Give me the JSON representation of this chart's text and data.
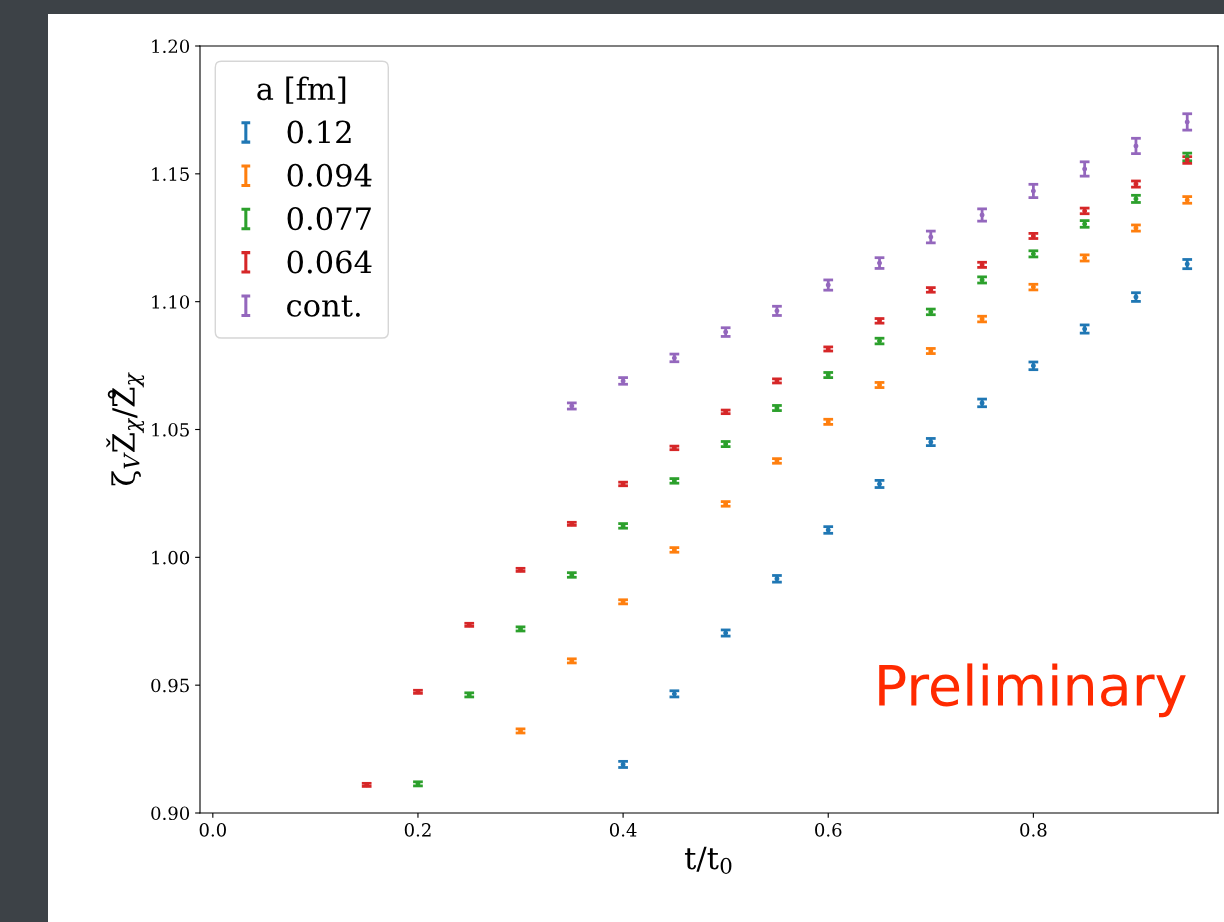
{
  "chart_data": {
    "type": "scatter",
    "xlabel": "t/t$_{0}$",
    "ylabel": "ζ$_{V}$Ž$_{χ}$/Z̊$_{χ}$",
    "legend_title": "a [fm]",
    "legend": "top left",
    "grid": false,
    "xlim": [
      -0.0125,
      0.98
    ],
    "xticks": [
      {
        "value": 0.0,
        "label": "0.0"
      },
      0.2,
      0.4,
      0.6,
      0.8
    ],
    "ylim": [
      0.9,
      1.2
    ],
    "yticks": [
      {
        "value": 0.9,
        "label": "0.90"
      },
      {
        "value": 0.95,
        "label": "0.95"
      },
      {
        "value": 1.0,
        "label": "1.00"
      },
      {
        "value": 1.05,
        "label": "1.05"
      },
      {
        "value": 1.1,
        "label": "1.10"
      },
      {
        "value": 1.15,
        "label": "1.15"
      },
      {
        "value": 1.2,
        "label": "1.20"
      }
    ],
    "annotations": [
      "Preliminary"
    ],
    "series": [
      {
        "name": "0.12",
        "color": "#1f77b4",
        "x": [
          0.4,
          0.45,
          0.5,
          0.55,
          0.6,
          0.65,
          0.7,
          0.75,
          0.8,
          0.85,
          0.9,
          0.95
        ],
        "values": [
          0.919,
          0.9466,
          0.9704,
          0.9916,
          1.0107,
          1.0287,
          1.0451,
          1.0604,
          1.0749,
          1.0893,
          1.1018,
          1.1147
        ],
        "errors": [
          0.0012,
          0.0012,
          0.0012,
          0.0013,
          0.0013,
          0.0014,
          0.0014,
          0.0015,
          0.0015,
          0.0016,
          0.0017,
          0.0018
        ]
      },
      {
        "name": "0.094",
        "color": "#ff7f0e",
        "x": [
          0.3,
          0.35,
          0.4,
          0.45,
          0.5,
          0.55,
          0.6,
          0.65,
          0.7,
          0.75,
          0.8,
          0.85,
          0.9,
          0.95
        ],
        "values": [
          0.9321,
          0.9595,
          0.9826,
          1.0029,
          1.0209,
          1.0377,
          1.053,
          1.0674,
          1.0807,
          1.0932,
          1.1057,
          1.1171,
          1.1288,
          1.1398
        ],
        "errors": [
          0.0008,
          0.0008,
          0.0008,
          0.0009,
          0.0009,
          0.0009,
          0.001,
          0.001,
          0.001,
          0.0011,
          0.0011,
          0.0012,
          0.0012,
          0.0013
        ]
      },
      {
        "name": "0.077",
        "color": "#2ca02c",
        "x": [
          0.2,
          0.25,
          0.3,
          0.35,
          0.4,
          0.45,
          0.5,
          0.55,
          0.6,
          0.65,
          0.7,
          0.75,
          0.8,
          0.85,
          0.9,
          0.95
        ],
        "values": [
          0.9114,
          0.9462,
          0.972,
          0.9931,
          1.0123,
          1.0299,
          1.0443,
          1.0584,
          1.0713,
          1.0846,
          1.096,
          1.1085,
          1.1187,
          1.1304,
          1.1402,
          1.1566
        ],
        "errors": [
          0.0008,
          0.0008,
          0.0008,
          0.0009,
          0.0009,
          0.0009,
          0.001,
          0.001,
          0.001,
          0.0011,
          0.0011,
          0.0012,
          0.0012,
          0.0013,
          0.0014,
          0.0015
        ]
      },
      {
        "name": "0.064",
        "color": "#d62728",
        "x": [
          0.15,
          0.2,
          0.25,
          0.3,
          0.35,
          0.4,
          0.45,
          0.5,
          0.55,
          0.6,
          0.65,
          0.7,
          0.75,
          0.8,
          0.85,
          0.9,
          0.95
        ],
        "values": [
          0.911,
          0.9474,
          0.9736,
          0.9951,
          1.0131,
          1.0287,
          1.0428,
          1.0569,
          1.069,
          1.0815,
          1.0925,
          1.1046,
          1.1144,
          1.1257,
          1.1355,
          1.146,
          1.1554
        ],
        "errors": [
          0.0006,
          0.0006,
          0.0006,
          0.0006,
          0.0006,
          0.0007,
          0.0007,
          0.0007,
          0.0008,
          0.0008,
          0.0009,
          0.0009,
          0.001,
          0.001,
          0.0011,
          0.0012,
          0.0013
        ]
      },
      {
        "name": "cont.",
        "color": "#9467bd",
        "x": [
          0.35,
          0.4,
          0.45,
          0.5,
          0.55,
          0.6,
          0.65,
          0.7,
          0.75,
          0.8,
          0.85,
          0.9,
          0.95
        ],
        "values": [
          1.0592,
          1.069,
          1.078,
          1.0881,
          1.0964,
          1.1065,
          1.1151,
          1.1253,
          1.1339,
          1.1433,
          1.1519,
          1.1609,
          1.1703
        ],
        "errors": [
          0.0012,
          0.0013,
          0.0015,
          0.0017,
          0.0018,
          0.002,
          0.0021,
          0.0023,
          0.0024,
          0.0026,
          0.0028,
          0.003,
          0.0032
        ]
      }
    ]
  }
}
